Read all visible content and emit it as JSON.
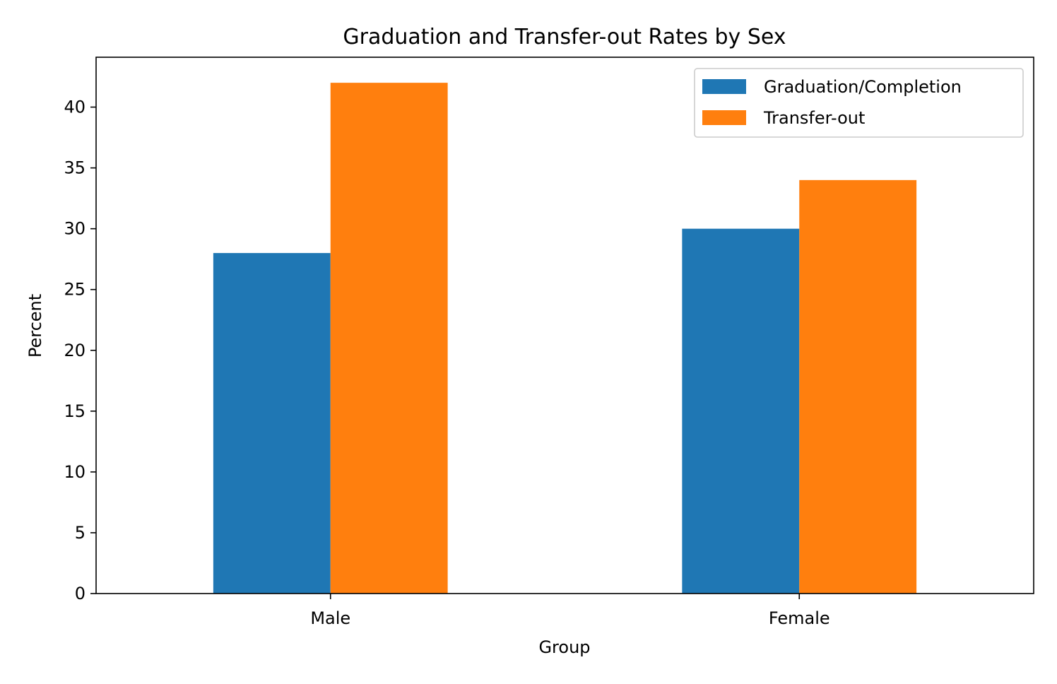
{
  "chart_data": {
    "type": "bar",
    "title": "Graduation and Transfer-out Rates by Sex",
    "xlabel": "Group",
    "ylabel": "Percent",
    "categories": [
      "Male",
      "Female"
    ],
    "series": [
      {
        "name": "Graduation/Completion",
        "values": [
          28,
          30
        ],
        "color": "#1f77b4"
      },
      {
        "name": "Transfer-out",
        "values": [
          42,
          34
        ],
        "color": "#ff7f0e"
      }
    ],
    "ylim": [
      0,
      44.1
    ],
    "yticks": [
      0,
      5,
      10,
      15,
      20,
      25,
      30,
      35,
      40
    ],
    "grid": false,
    "legend_position": "top-right"
  }
}
